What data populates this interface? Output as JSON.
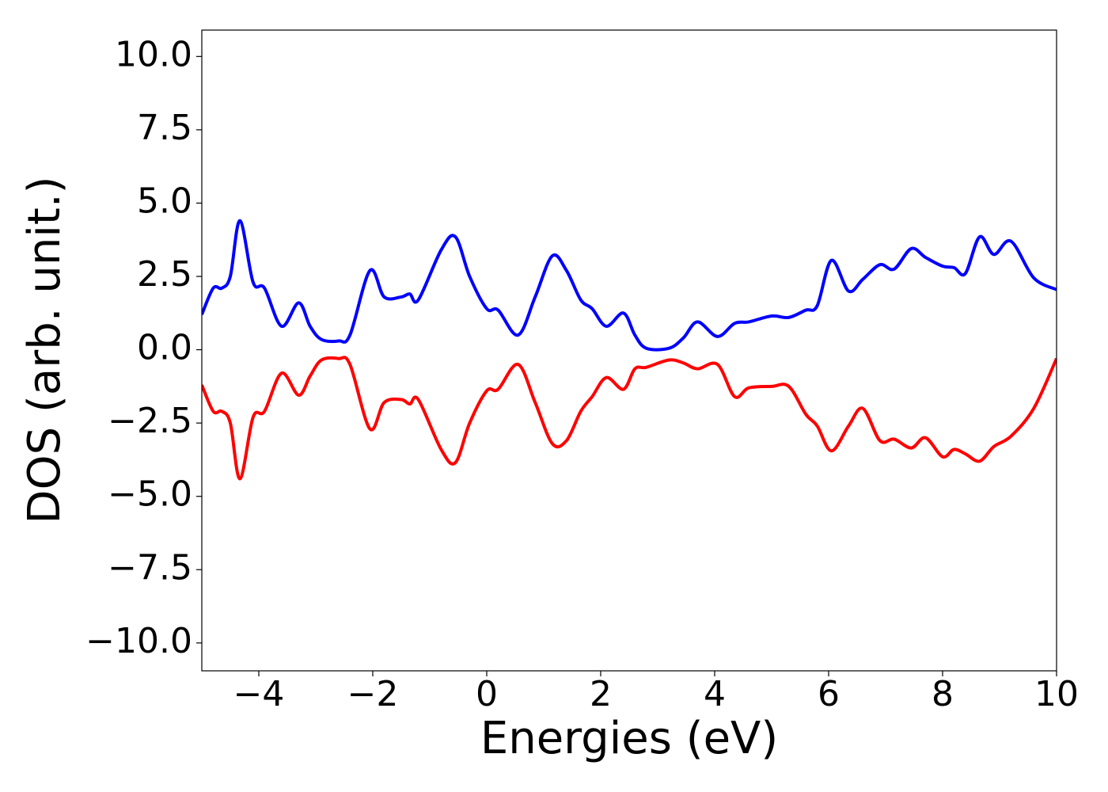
{
  "chart_data": {
    "type": "line",
    "xlabel": "Energies (eV)",
    "ylabel": "DOS (arb. unit.)",
    "xlim": [
      -5,
      10
    ],
    "ylim": [
      -10.95,
      10.9
    ],
    "xticks": [
      {
        "value": -4,
        "label": "−4"
      },
      {
        "value": -2,
        "label": "−2"
      },
      0,
      2,
      4,
      6,
      8,
      10
    ],
    "yticks": [
      {
        "value": -10,
        "label": "−10.0"
      },
      {
        "value": -7.5,
        "label": "−7.5"
      },
      {
        "value": -5,
        "label": "−5.0"
      },
      {
        "value": -2.5,
        "label": "−2.5"
      },
      {
        "value": 0,
        "label": "0.0"
      },
      {
        "value": 2.5,
        "label": "2.5"
      },
      {
        "value": 5,
        "label": "5.0"
      },
      {
        "value": 7.5,
        "label": "7.5"
      },
      {
        "value": 10,
        "label": "10.0"
      }
    ],
    "x": [
      -5,
      -4.8,
      -4.65,
      -4.5,
      -4.33,
      -4.1,
      -3.9,
      -3.6,
      -3.3,
      -3.1,
      -2.9,
      -2.6,
      -2.4,
      -2.05,
      -1.8,
      -1.5,
      -1.35,
      -1.2,
      -0.8,
      -0.55,
      -0.3,
      0,
      0.2,
      0.55,
      0.85,
      1.15,
      1.4,
      1.65,
      1.85,
      2.1,
      2.4,
      2.6,
      2.8,
      3.2,
      3.45,
      3.7,
      4.05,
      4.35,
      4.6,
      5.0,
      5.3,
      5.6,
      5.8,
      6.05,
      6.35,
      6.6,
      6.9,
      7.15,
      7.45,
      7.7,
      8.0,
      8.2,
      8.4,
      8.65,
      8.9,
      9.2,
      9.6,
      10
    ],
    "series": [
      {
        "color": "#0000ff",
        "values": [
          1.2,
          2.1,
          2.1,
          2.5,
          4.4,
          2.3,
          2.1,
          0.8,
          1.6,
          0.8,
          0.35,
          0.3,
          0.5,
          2.7,
          1.8,
          1.8,
          1.9,
          1.7,
          3.4,
          3.85,
          2.5,
          1.4,
          1.35,
          0.5,
          1.8,
          3.2,
          2.7,
          1.7,
          1.4,
          0.8,
          1.25,
          0.5,
          0.05,
          0.05,
          0.4,
          0.95,
          0.45,
          0.9,
          0.95,
          1.15,
          1.1,
          1.35,
          1.5,
          3.05,
          2.0,
          2.4,
          2.9,
          2.75,
          3.45,
          3.15,
          2.85,
          2.8,
          2.6,
          3.85,
          3.25,
          3.7,
          2.45,
          2.05
        ]
      },
      {
        "color": "#ff0000",
        "values": [
          -1.2,
          -2.1,
          -2.1,
          -2.5,
          -4.4,
          -2.3,
          -2.1,
          -0.8,
          -1.55,
          -0.9,
          -0.35,
          -0.3,
          -0.5,
          -2.7,
          -1.8,
          -1.7,
          -1.85,
          -1.7,
          -3.4,
          -3.85,
          -2.5,
          -1.4,
          -1.35,
          -0.5,
          -1.8,
          -3.2,
          -3.1,
          -2.1,
          -1.6,
          -0.95,
          -1.35,
          -0.65,
          -0.6,
          -0.35,
          -0.45,
          -0.65,
          -0.5,
          -1.6,
          -1.3,
          -1.25,
          -1.25,
          -2.2,
          -2.6,
          -3.45,
          -2.6,
          -2.0,
          -3.1,
          -3.05,
          -3.35,
          -3.0,
          -3.65,
          -3.4,
          -3.55,
          -3.8,
          -3.3,
          -2.95,
          -2.0,
          -0.3
        ]
      }
    ]
  }
}
